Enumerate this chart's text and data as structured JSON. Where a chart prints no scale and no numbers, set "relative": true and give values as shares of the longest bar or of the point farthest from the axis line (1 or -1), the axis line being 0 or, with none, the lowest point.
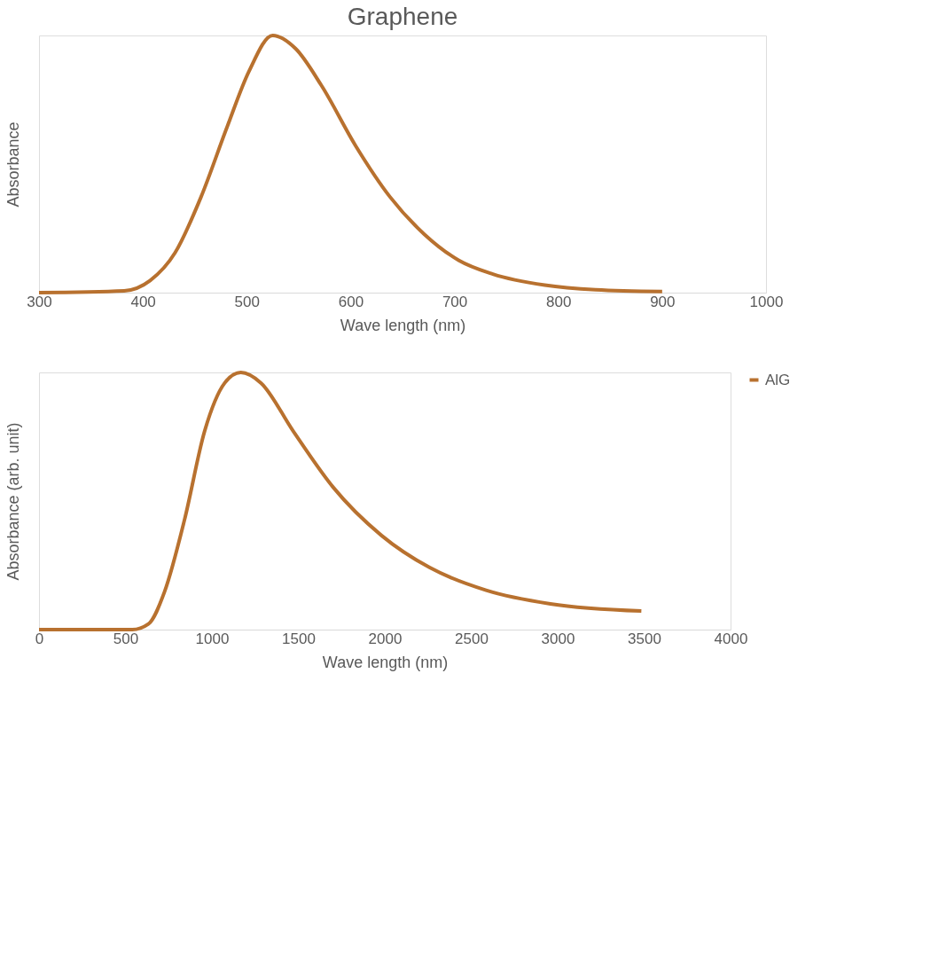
{
  "chart_data": [
    {
      "type": "line",
      "title": "Graphene",
      "xlabel": "Wave length (nm)",
      "ylabel": "Absorbance",
      "relative": true,
      "tick_labels": "x",
      "grid": false,
      "legend": false,
      "xlim": [
        300,
        1000
      ],
      "xticks": [
        300,
        400,
        500,
        600,
        700,
        800,
        900,
        1000
      ],
      "series": [
        {
          "color": "#b8712f",
          "x": [
            300,
            382,
            407,
            431,
            456,
            481,
            502,
            525,
            547,
            572,
            605,
            638,
            671,
            704,
            737,
            787,
            836,
            900
          ],
          "values": [
            0,
            0.007,
            0.047,
            0.155,
            0.372,
            0.643,
            0.859,
            1,
            0.949,
            0.805,
            0.57,
            0.372,
            0.227,
            0.126,
            0.072,
            0.029,
            0.011,
            0.004
          ]
        }
      ]
    },
    {
      "type": "line",
      "xlabel": "Wave length (nm)",
      "ylabel": "Absorbance (arb. unit)",
      "relative": true,
      "tick_labels": "x",
      "grid": false,
      "legend": "right",
      "xlim": [
        0,
        4000
      ],
      "xticks": [
        0,
        500,
        1000,
        1500,
        2000,
        2500,
        3000,
        3500,
        4000
      ],
      "series": [
        {
          "name": "AlG",
          "color": "#b8712f",
          "x": [
            0,
            540,
            633,
            726,
            842,
            958,
            1074,
            1167,
            1284,
            1470,
            1702,
            1981,
            2260,
            2586,
            2958,
            3484
          ],
          "values": [
            0,
            0,
            0.022,
            0.147,
            0.428,
            0.772,
            0.959,
            1,
            0.959,
            0.772,
            0.553,
            0.366,
            0.241,
            0.153,
            0.1,
            0.072
          ]
        }
      ]
    }
  ]
}
